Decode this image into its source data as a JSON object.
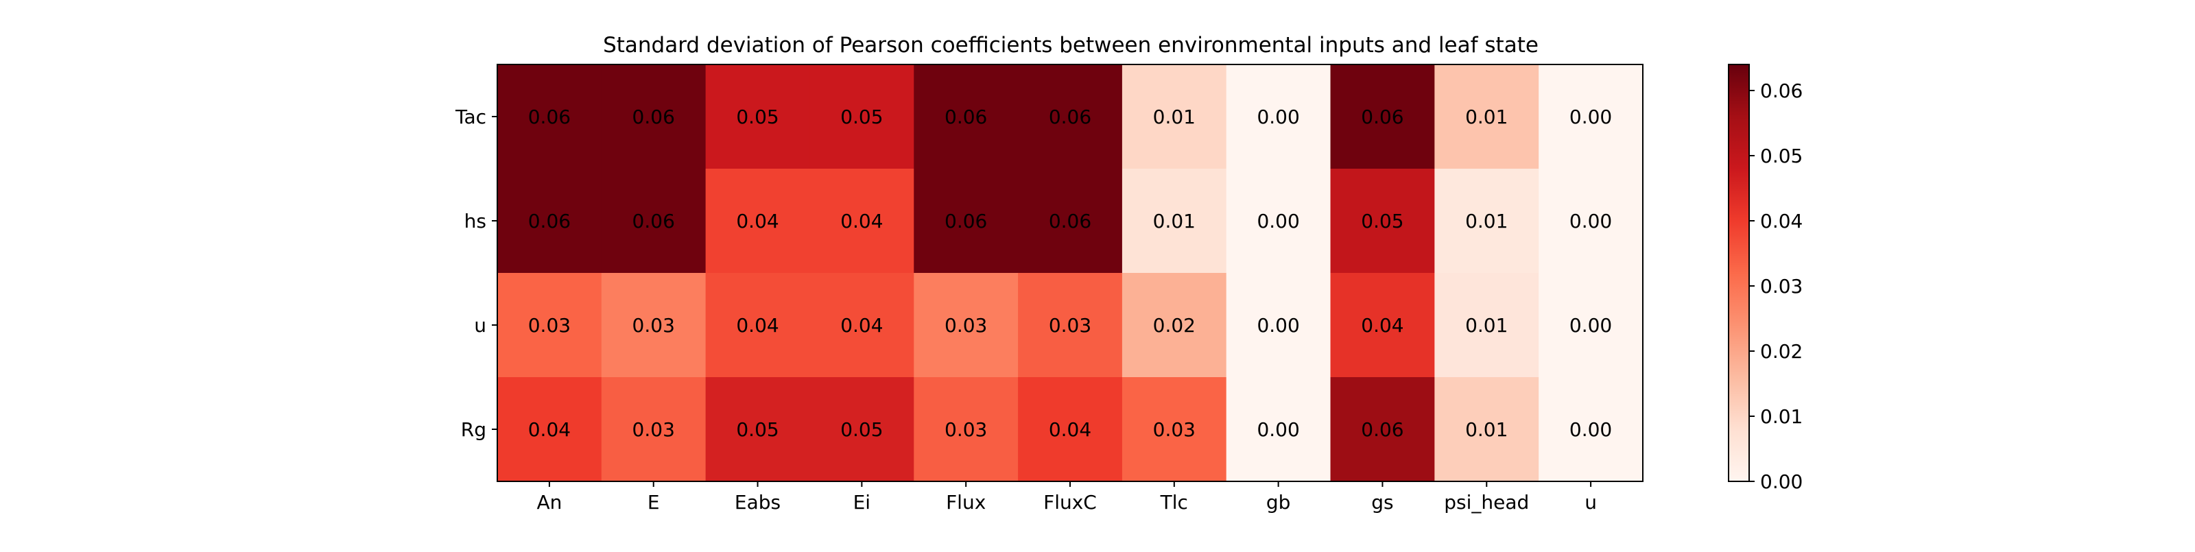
{
  "chart_data": {
    "type": "heatmap",
    "title": "Standard deviation of Pearson coefficients between environmental inputs and leaf state",
    "xlabel": "",
    "ylabel": "",
    "x_categories": [
      "An",
      "E",
      "Eabs",
      "Ei",
      "Flux",
      "FluxC",
      "Tlc",
      "gb",
      "gs",
      "psi_head",
      "u"
    ],
    "y_categories": [
      "Tac",
      "hs",
      "u",
      "Rg"
    ],
    "values": [
      [
        0.063,
        0.063,
        0.048,
        0.048,
        0.063,
        0.063,
        0.01,
        0.0,
        0.063,
        0.014,
        0.0
      ],
      [
        0.063,
        0.063,
        0.039,
        0.039,
        0.063,
        0.063,
        0.007,
        0.0,
        0.05,
        0.005,
        0.0
      ],
      [
        0.033,
        0.028,
        0.037,
        0.037,
        0.028,
        0.034,
        0.018,
        0.0,
        0.042,
        0.006,
        0.0
      ],
      [
        0.04,
        0.034,
        0.046,
        0.046,
        0.034,
        0.04,
        0.033,
        0.0,
        0.057,
        0.012,
        0.0
      ]
    ],
    "labels": [
      [
        "0.06",
        "0.06",
        "0.05",
        "0.05",
        "0.06",
        "0.06",
        "0.01",
        "0.00",
        "0.06",
        "0.01",
        "0.00"
      ],
      [
        "0.06",
        "0.06",
        "0.04",
        "0.04",
        "0.06",
        "0.06",
        "0.01",
        "0.00",
        "0.05",
        "0.01",
        "0.00"
      ],
      [
        "0.03",
        "0.03",
        "0.04",
        "0.04",
        "0.03",
        "0.03",
        "0.02",
        "0.00",
        "0.04",
        "0.01",
        "0.00"
      ],
      [
        "0.04",
        "0.03",
        "0.05",
        "0.05",
        "0.03",
        "0.04",
        "0.03",
        "0.00",
        "0.06",
        "0.01",
        "0.00"
      ]
    ],
    "colormap": "Reds",
    "vmin": 0.0,
    "vmax": 0.064,
    "colorbar": {
      "ticks": [
        0.0,
        0.01,
        0.02,
        0.03,
        0.04,
        0.05,
        0.06
      ],
      "tick_labels": [
        "0.00",
        "0.01",
        "0.02",
        "0.03",
        "0.04",
        "0.05",
        "0.06"
      ],
      "position": "right"
    },
    "grid": false
  }
}
